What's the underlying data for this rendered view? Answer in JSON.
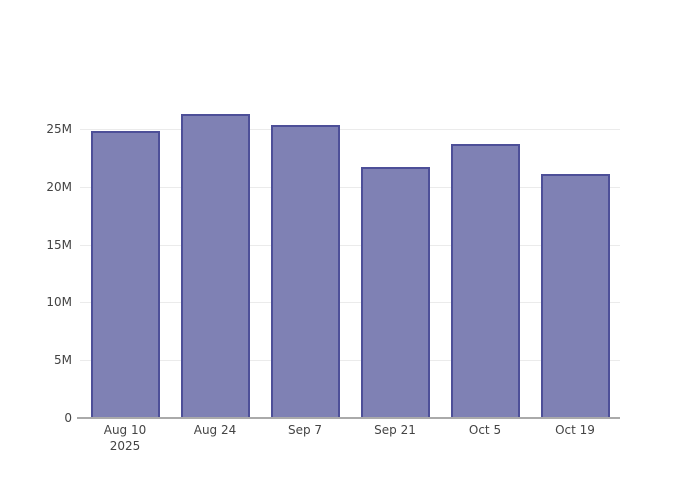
{
  "chart_data": {
    "type": "bar",
    "title": "",
    "xlabel": "",
    "ylabel": "",
    "legend": "none",
    "grid": true,
    "categories": [
      "Aug 10",
      "Aug 24",
      "Sep 7",
      "Sep 21",
      "Oct 5",
      "Oct 19"
    ],
    "category_sublabels": [
      "2025",
      "",
      "",
      "",
      "",
      ""
    ],
    "values": [
      24.8,
      26.3,
      25.3,
      21.7,
      23.7,
      21.1
    ],
    "value_unit": "M",
    "series_name": "",
    "ylim": [
      0,
      27.5
    ],
    "yticks": [
      {
        "value": 0,
        "label": "0"
      },
      {
        "value": 5,
        "label": "5M"
      },
      {
        "value": 10,
        "label": "10M"
      },
      {
        "value": 15,
        "label": "15M"
      },
      {
        "value": 20,
        "label": "20M"
      },
      {
        "value": 25,
        "label": "25M"
      }
    ],
    "colors": {
      "bar_fill": "#7F81B4",
      "bar_border": "#4D4F98",
      "gridline": "#EBEBEB",
      "axis_line": "#AAAAAA",
      "tick_text": "#444444",
      "background": "#FFFFFF"
    }
  }
}
